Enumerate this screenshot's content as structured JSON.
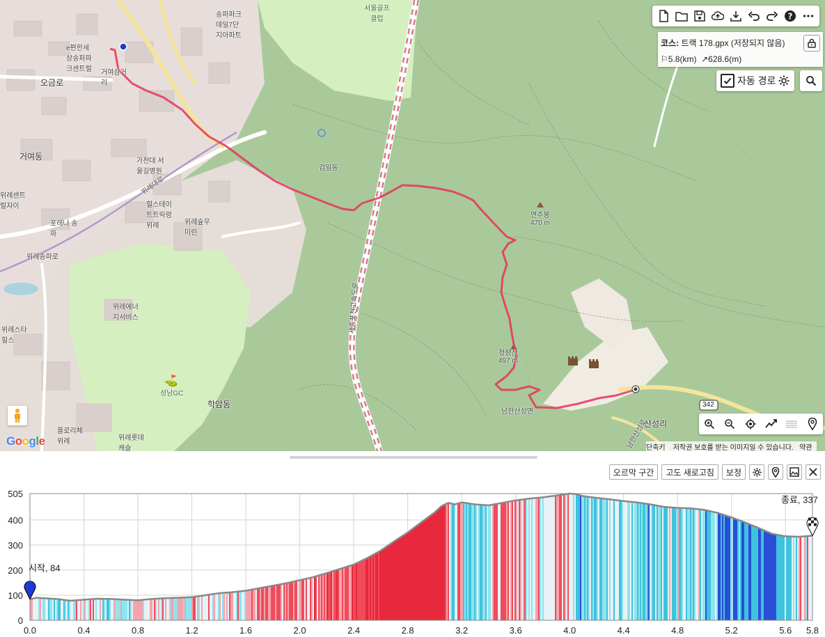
{
  "map": {
    "place_labels": [
      {
        "text": "서울골프\n클럽",
        "name": "seoul-golf-club"
      },
      {
        "text": "거여동",
        "name": "geoyeo-dong"
      },
      {
        "text": "오금로",
        "name": "ogeum-ro"
      },
      {
        "text": "가천대 서\n울길병원",
        "name": "gachon-hospital"
      },
      {
        "text": "힐스테이\n트트릭령\n위례",
        "name": "hillstate-wirye"
      },
      {
        "text": "위례숲우\n미린",
        "name": "wirye-woomirin"
      },
      {
        "text": "위례센트\n럴자이",
        "name": "wirye-central-xi"
      },
      {
        "text": "위례에너\n지서비스",
        "name": "wirye-energy"
      },
      {
        "text": "성남GC",
        "name": "seongnam-gc"
      },
      {
        "text": "학암동",
        "name": "hakam-dong"
      },
      {
        "text": "위례스타\n힐스",
        "name": "wirye-star-hills"
      },
      {
        "text": "포레나 송\n파",
        "name": "forena-songpa"
      },
      {
        "text": "위례송파로",
        "name": "wirye-songpa-ro"
      },
      {
        "text": "플로리체\n위례",
        "name": "florice-wirye"
      },
      {
        "text": "위례롯데\n캐슬",
        "name": "wirye-lotte-castle"
      },
      {
        "text": "연주봉\n470 m",
        "name": "yeonjubong"
      },
      {
        "text": "청량산\n497 m",
        "name": "cheongnyangsan"
      },
      {
        "text": "산성리",
        "name": "sanseong-ri"
      },
      {
        "text": "남한산성로",
        "name": "namhansanseong-ro"
      },
      {
        "text": "세종포천고속도로",
        "name": "sejong-pocheon-expressway"
      },
      {
        "text": "검일동",
        "name": "geomil-dong"
      },
      {
        "text": "송파파크\n데일7단\n지아파트",
        "name": "songpa-parkdale"
      },
      {
        "text": "e편한세\n상송파파\n크센트럴",
        "name": "epyeonhan-songpa"
      },
      {
        "text": "거여삼거\n리",
        "name": "geoyeo-junction"
      },
      {
        "text": "위례대로",
        "name": "wirye-daero"
      },
      {
        "text": "남한산성면",
        "name": "namhansanseong-myeon"
      },
      {
        "text": "342",
        "name": "route-342"
      }
    ],
    "copyright": "저작권 보호를 받는 이미지일 수 있습니다.",
    "copyright_left": "단축키",
    "copyright_right": "약관",
    "google": "Google"
  },
  "toolbar": {
    "buttons": [
      "new-file-icon",
      "open-folder-icon",
      "save-icon",
      "upload-cloud-icon",
      "download-icon",
      "undo-icon",
      "redo-icon",
      "help-icon",
      "more-icon"
    ]
  },
  "course": {
    "label": "코스:",
    "name": "트랙 178.gpx (저장되지 않음)",
    "distance": "5.8(km)",
    "ascent": "628.6(m)"
  },
  "auto_route": {
    "label": "자동 경로",
    "checked": true
  },
  "profile_toolbar": {
    "climb_label": "오르막 구간",
    "refresh_label": "고도 새로고침",
    "correct_label": "보정"
  },
  "chart_data": {
    "type": "area",
    "title": "",
    "xlabel": "",
    "ylabel": "",
    "xlim": [
      0,
      5.8
    ],
    "ylim": [
      0,
      505
    ],
    "x_ticks": [
      "0.0",
      "0.4",
      "0.8",
      "1.2",
      "1.6",
      "2.0",
      "2.4",
      "2.8",
      "3.2",
      "3.6",
      "4.0",
      "4.4",
      "4.8",
      "5.2",
      "5.6",
      "5.8"
    ],
    "y_ticks": [
      "0",
      "100",
      "200",
      "300",
      "400",
      "505"
    ],
    "grid": true,
    "series": [
      {
        "x": [
          0.0,
          0.05,
          0.1,
          0.2,
          0.3,
          0.4,
          0.5,
          0.6,
          0.7,
          0.8,
          0.9,
          1.0,
          1.1,
          1.2,
          1.3,
          1.4,
          1.5,
          1.6,
          1.7,
          1.8,
          1.9,
          2.0,
          2.1,
          2.2,
          2.3,
          2.4,
          2.5,
          2.6,
          2.7,
          2.8,
          2.9,
          3.0,
          3.05,
          3.1,
          3.15,
          3.2,
          3.3,
          3.4,
          3.5,
          3.6,
          3.7,
          3.8,
          3.9,
          4.0,
          4.05,
          4.1,
          4.2,
          4.3,
          4.4,
          4.5,
          4.6,
          4.7,
          4.8,
          4.9,
          5.0,
          5.1,
          5.2,
          5.3,
          5.4,
          5.5,
          5.6,
          5.7,
          5.8
        ],
        "y": [
          84,
          90,
          88,
          85,
          78,
          82,
          86,
          85,
          82,
          80,
          85,
          88,
          90,
          92,
          100,
          108,
          112,
          118,
          128,
          138,
          148,
          160,
          172,
          188,
          205,
          222,
          248,
          278,
          315,
          350,
          390,
          430,
          455,
          468,
          462,
          470,
          462,
          458,
          468,
          478,
          485,
          490,
          497,
          505,
          503,
          495,
          488,
          482,
          475,
          470,
          462,
          452,
          448,
          446,
          440,
          428,
          410,
          390,
          368,
          345,
          335,
          333,
          337
        ]
      }
    ],
    "annotations": [
      {
        "label": "시작, 84",
        "x": 0.0,
        "y": 84
      },
      {
        "label": "종료, 337",
        "x": 5.8,
        "y": 337
      }
    ]
  }
}
